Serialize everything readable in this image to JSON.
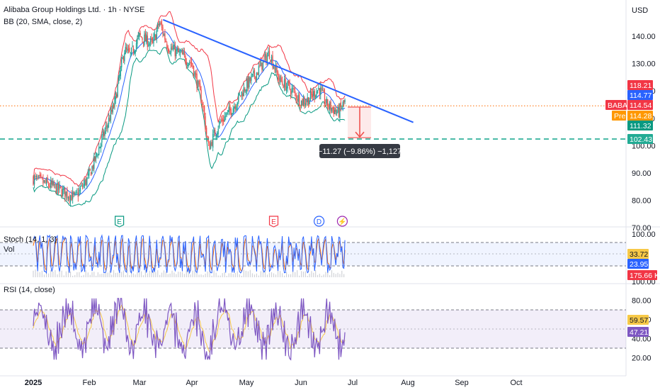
{
  "header": {
    "title": "Alibaba Group Holdings Ltd. · 1h · NYSE",
    "bb": "BB (20, SMA, close, 2)",
    "stoch": "Stoch (14, 1, 3)",
    "vol": "Vol",
    "rsi": "RSI (14, close)",
    "currency": "USD"
  },
  "colors": {
    "up": "#26a69a",
    "down": "#ef5350",
    "bb_upper": "#f23645",
    "bb_lower": "#089981",
    "bb_basis": "#2962ff",
    "trendline": "#2962ff",
    "support": "#22ab94",
    "stoch_k": "#2962ff",
    "stoch_d": "#ff6d00",
    "rsi": "#7e57c2",
    "rsi_ma": "#f7c948"
  },
  "chart_data": [
    {
      "type": "candlestick",
      "title": "Alibaba Group Holdings Ltd. · 1h · NYSE",
      "ylim": [
        70,
        150
      ],
      "y_ticks": [
        "140.00",
        "130.00",
        "120.00",
        "110.00",
        "100.00",
        "90.00",
        "80.00",
        "70.00"
      ],
      "x_ticks": [
        "2025",
        "Feb",
        "Mar",
        "Apr",
        "May",
        "Jun",
        "Jul",
        "Aug",
        "Sep",
        "Oct"
      ],
      "x_months": [
        0,
        1,
        2,
        3,
        4,
        5,
        6,
        7,
        8,
        9
      ],
      "price_path": [
        {
          "x": 0.0,
          "y": 88
        },
        {
          "x": 0.35,
          "y": 85
        },
        {
          "x": 0.75,
          "y": 81
        },
        {
          "x": 1.0,
          "y": 89
        },
        {
          "x": 1.25,
          "y": 102
        },
        {
          "x": 1.5,
          "y": 115
        },
        {
          "x": 1.7,
          "y": 135
        },
        {
          "x": 1.82,
          "y": 133
        },
        {
          "x": 2.0,
          "y": 140
        },
        {
          "x": 2.25,
          "y": 137
        },
        {
          "x": 2.38,
          "y": 145
        },
        {
          "x": 2.55,
          "y": 136
        },
        {
          "x": 2.8,
          "y": 133
        },
        {
          "x": 3.0,
          "y": 130
        },
        {
          "x": 3.2,
          "y": 115
        },
        {
          "x": 3.3,
          "y": 99
        },
        {
          "x": 3.5,
          "y": 108
        },
        {
          "x": 3.75,
          "y": 114
        },
        {
          "x": 4.0,
          "y": 122
        },
        {
          "x": 4.2,
          "y": 127
        },
        {
          "x": 4.42,
          "y": 134
        },
        {
          "x": 4.6,
          "y": 124
        },
        {
          "x": 4.85,
          "y": 120
        },
        {
          "x": 5.0,
          "y": 116
        },
        {
          "x": 5.15,
          "y": 117
        },
        {
          "x": 5.35,
          "y": 121
        },
        {
          "x": 5.5,
          "y": 115
        },
        {
          "x": 5.72,
          "y": 112
        },
        {
          "x": 5.85,
          "y": 116
        }
      ],
      "series": [
        {
          "name": "BABA",
          "last": 114.54
        },
        {
          "name": "Pre",
          "last": 114.28
        }
      ],
      "bb_tags": [
        118.21,
        114.77,
        111.32
      ],
      "trendline": {
        "from": {
          "x": 2.45,
          "y": 146
        },
        "to": {
          "x": 7.1,
          "y": 108.5
        }
      },
      "support": {
        "value": 102.43
      },
      "measure": {
        "from": 114.1,
        "to": 102.9,
        "label": "−11.27 (−9.86%) −1,127"
      },
      "events": [
        "E",
        "E",
        "D",
        "⚡"
      ],
      "event_months": [
        1.6,
        4.5,
        5.35,
        5.8
      ]
    },
    {
      "type": "line",
      "title": "Stoch (14, 1, 3)",
      "ylim": [
        0,
        100
      ],
      "y_ticks": [
        "100.00"
      ],
      "bands": [
        80,
        50,
        20
      ],
      "values": {
        "k": 33.72,
        "d": 23.95,
        "vol": "175.66 K"
      }
    },
    {
      "type": "line",
      "title": "RSI (14, close)",
      "ylim": [
        10,
        90
      ],
      "y_ticks": [
        "80.00",
        "60.00",
        "40.00",
        "20.00"
      ],
      "bands": [
        70,
        50,
        30
      ],
      "values": {
        "rsi": 59.57,
        "ma": 47.21
      }
    }
  ]
}
